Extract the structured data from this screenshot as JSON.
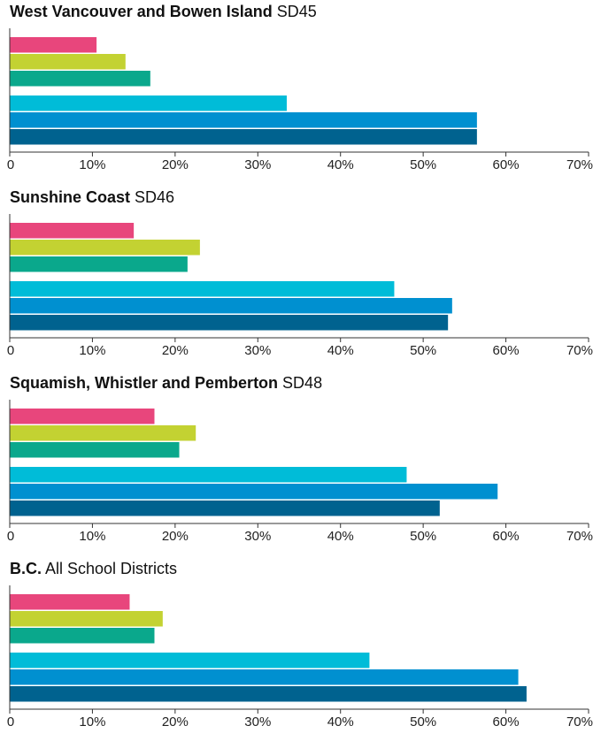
{
  "chart_data": {
    "type": "bar",
    "orientation": "horizontal",
    "xlim": [
      0,
      70
    ],
    "x_ticks": [
      "0",
      "10%",
      "20%",
      "30%",
      "40%",
      "50%",
      "60%",
      "70%"
    ],
    "grid": false,
    "legend": "none",
    "series_colors": [
      "#e8467c",
      "#c3d232",
      "#0aa88c",
      "#00bcd8",
      "#0090d0",
      "#00628f"
    ],
    "panels": [
      {
        "title_bold": "West Vancouver and Bowen Island",
        "title_rest": " SD45",
        "values": [
          10.5,
          14,
          17,
          33.5,
          56.5,
          56.5
        ]
      },
      {
        "title_bold": "Sunshine Coast",
        "title_rest": " SD46",
        "values": [
          15,
          23,
          21.5,
          46.5,
          53.5,
          53
        ]
      },
      {
        "title_bold": "Squamish, Whistler and Pemberton",
        "title_rest": " SD48",
        "values": [
          17.5,
          22.5,
          20.5,
          48,
          59,
          52
        ]
      },
      {
        "title_bold": "B.C.",
        "title_rest": " All School Districts",
        "values": [
          14.5,
          18.5,
          17.5,
          43.5,
          61.5,
          62.5
        ]
      }
    ]
  }
}
